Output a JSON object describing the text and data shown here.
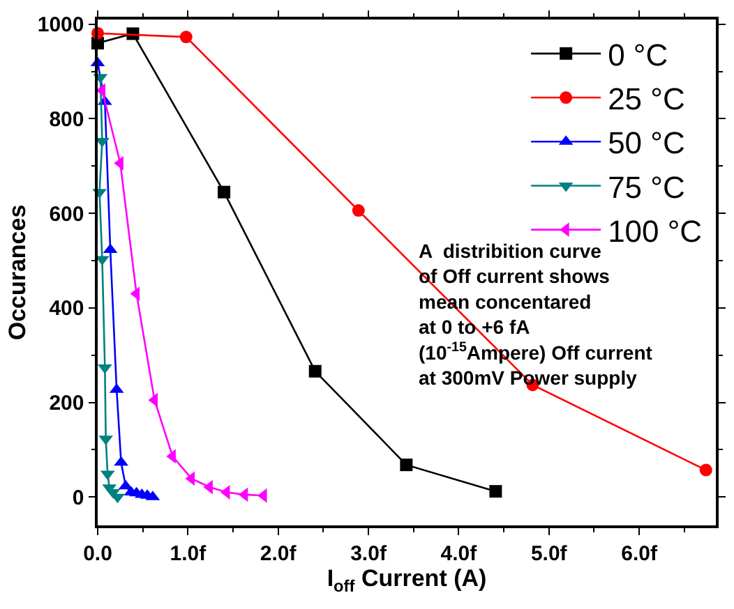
{
  "chart_data": {
    "type": "line",
    "xlabel": "I$_{off}$ Current (A)",
    "ylabel": "Occurances",
    "xlim": [
      0,
      6.85
    ],
    "ylim": [
      -60,
      1010
    ],
    "xticks": [
      {
        "value": 0,
        "label": "0.0"
      },
      {
        "value": 1,
        "label": "1.0f"
      },
      {
        "value": 2,
        "label": "2.0f"
      },
      {
        "value": 3,
        "label": "3.0f"
      },
      {
        "value": 4,
        "label": "4.0f"
      },
      {
        "value": 5,
        "label": "5.0f"
      },
      {
        "value": 6,
        "label": "6.0f"
      }
    ],
    "yticks": [
      0,
      200,
      400,
      600,
      800,
      1000
    ],
    "legend": "top right",
    "series": [
      {
        "name": "0 °C",
        "color": "#000000",
        "marker": "square",
        "x": [
          0,
          0.39,
          1.4,
          2.41,
          3.42,
          4.41
        ],
        "values": [
          960,
          980,
          645,
          266,
          68,
          12
        ]
      },
      {
        "name": "25 °C",
        "color": "#ff0000",
        "marker": "circle",
        "x": [
          0,
          0.98,
          2.89,
          4.82,
          6.74
        ],
        "values": [
          981,
          973,
          606,
          237,
          57
        ]
      },
      {
        "name": "50 °C",
        "color": "#0000ff",
        "marker": "triangle-up",
        "x": [
          0,
          0.08,
          0.14,
          0.21,
          0.26,
          0.31,
          0.37,
          0.43,
          0.49,
          0.55,
          0.61
        ],
        "values": [
          918,
          836,
          523,
          227,
          73,
          23,
          10,
          8,
          5,
          3,
          0
        ]
      },
      {
        "name": "75 °C",
        "color": "#008080",
        "marker": "triangle-down",
        "x": [
          0.03,
          0.05,
          0.02,
          0.05,
          0.08,
          0.09,
          0.11,
          0.13,
          0.17,
          0.22
        ],
        "values": [
          888,
          753,
          645,
          503,
          274,
          123,
          49,
          20,
          10,
          0
        ]
      },
      {
        "name": "100 °C",
        "color": "#ff00ff",
        "marker": "triangle-left",
        "x": [
          0.05,
          0.25,
          0.43,
          0.63,
          0.83,
          1.04,
          1.24,
          1.43,
          1.63,
          1.84
        ],
        "values": [
          860,
          706,
          430,
          205,
          86,
          39,
          21,
          10,
          5,
          3
        ]
      }
    ],
    "annotations": [
      {
        "text": "A  distribition curve\nof Off current shows\nmean concentared\nat 0 to +6 fA\n(10$^{-15}$Ampere) Off current\nat 300mV Power supply"
      }
    ]
  }
}
